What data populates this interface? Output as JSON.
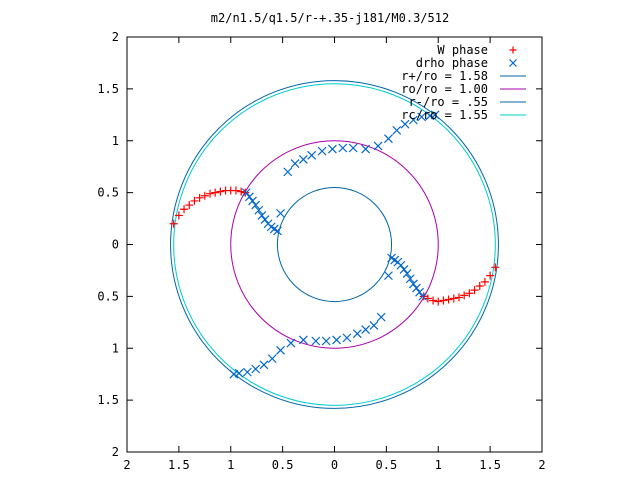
{
  "chart_data": {
    "type": "scatter",
    "title": "m2/n1.5/q1.5/r-+.35-j181/M0.3/512",
    "xlabel": "",
    "ylabel": "",
    "xlim": [
      -2,
      2
    ],
    "ylim": [
      -2,
      2
    ],
    "grid": false,
    "legend_position": "top-right",
    "x_tick_values": [
      -2,
      -1.5,
      -1,
      -0.5,
      0,
      0.5,
      1,
      1.5,
      2
    ],
    "x_tick_labels": [
      "2",
      "1.5",
      "1",
      "0.5",
      "0",
      "0.5",
      "1",
      "1.5",
      "2"
    ],
    "y_tick_values": [
      2,
      1.5,
      1,
      0.5,
      0,
      -0.5,
      -1,
      -1.5,
      -2
    ],
    "y_tick_labels": [
      "2",
      "1.5",
      "1",
      "0.5",
      "0",
      "0.5",
      "1",
      "1.5",
      "2"
    ],
    "circles": [
      {
        "name": "r+/ro = 1.58",
        "radius": 1.58,
        "color": "#0066aa"
      },
      {
        "name": "ro/ro = 1.00",
        "radius": 1.0,
        "color": "#aa00aa"
      },
      {
        "name": "r-/ro = .55",
        "radius": 0.55,
        "color": "#0066aa"
      },
      {
        "name": "rc/ro = 1.55",
        "radius": 1.55,
        "color": "#00cccc"
      }
    ],
    "series": [
      {
        "name": "W phase",
        "marker": "plus",
        "color": "#ff0000",
        "x": [
          -1.55,
          -1.5,
          -1.45,
          -1.4,
          -1.35,
          -1.3,
          -1.25,
          -1.2,
          -1.15,
          -1.1,
          -1.05,
          -1.0,
          -0.95,
          -0.9,
          -0.86,
          1.55,
          1.5,
          1.45,
          1.4,
          1.35,
          1.3,
          1.25,
          1.2,
          1.15,
          1.1,
          1.05,
          1.0,
          0.95,
          0.9,
          0.86
        ],
        "y": [
          0.2,
          0.28,
          0.34,
          0.38,
          0.42,
          0.45,
          0.47,
          0.49,
          0.5,
          0.51,
          0.52,
          0.52,
          0.52,
          0.51,
          0.5,
          -0.22,
          -0.3,
          -0.36,
          -0.4,
          -0.44,
          -0.47,
          -0.49,
          -0.51,
          -0.52,
          -0.53,
          -0.54,
          -0.55,
          -0.54,
          -0.52,
          -0.5
        ]
      },
      {
        "name": "drho phase",
        "marker": "cross",
        "color": "#0066cc",
        "x": [
          -0.85,
          -0.82,
          -0.79,
          -0.76,
          -0.73,
          -0.7,
          -0.67,
          -0.64,
          -0.61,
          -0.58,
          -0.55,
          -0.52,
          -0.45,
          -0.38,
          -0.3,
          -0.22,
          -0.12,
          -0.02,
          0.08,
          0.18,
          0.3,
          0.42,
          0.52,
          0.6,
          0.68,
          0.76,
          0.84,
          0.92,
          0.97,
          0.85,
          0.82,
          0.79,
          0.76,
          0.73,
          0.7,
          0.67,
          0.64,
          0.61,
          0.58,
          0.55,
          0.52,
          0.45,
          0.38,
          0.3,
          0.22,
          0.12,
          0.02,
          -0.08,
          -0.18,
          -0.3,
          -0.42,
          -0.52,
          -0.6,
          -0.68,
          -0.76,
          -0.84,
          -0.92,
          -0.97
        ],
        "y": [
          0.5,
          0.46,
          0.42,
          0.38,
          0.33,
          0.28,
          0.24,
          0.2,
          0.17,
          0.15,
          0.13,
          0.3,
          0.7,
          0.78,
          0.82,
          0.86,
          0.9,
          0.92,
          0.93,
          0.93,
          0.92,
          0.95,
          1.02,
          1.1,
          1.16,
          1.2,
          1.23,
          1.24,
          1.25,
          -0.5,
          -0.46,
          -0.42,
          -0.38,
          -0.33,
          -0.28,
          -0.24,
          -0.2,
          -0.17,
          -0.15,
          -0.13,
          -0.3,
          -0.7,
          -0.78,
          -0.82,
          -0.86,
          -0.9,
          -0.92,
          -0.93,
          -0.93,
          -0.92,
          -0.95,
          -1.02,
          -1.1,
          -1.16,
          -1.2,
          -1.23,
          -1.24,
          -1.25
        ]
      }
    ]
  }
}
